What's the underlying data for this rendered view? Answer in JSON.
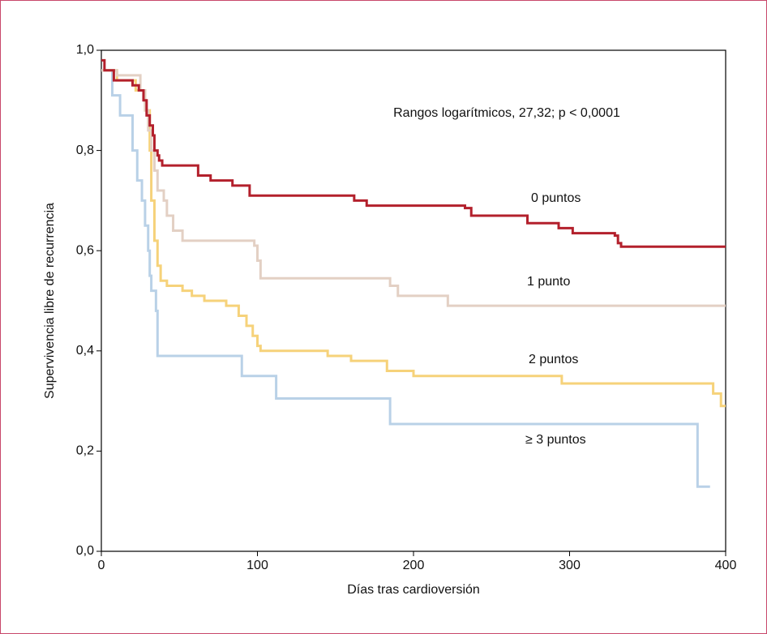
{
  "chart_data": {
    "type": "step",
    "xlabel": "Días tras cardioversión",
    "ylabel": "Supervivencia libre de recurrencia",
    "annotation": "Rangos logarítmicos, 27,32; p < 0,0001",
    "xlim": [
      0,
      400
    ],
    "xticks": [
      0,
      100,
      200,
      300,
      400
    ],
    "ylim": [
      0,
      1
    ],
    "yticks": [
      {
        "value": 0,
        "label": "0,0"
      },
      {
        "value": 0.2,
        "label": "0,2"
      },
      {
        "value": 0.4,
        "label": "0,4"
      },
      {
        "value": 0.6,
        "label": "0,6"
      },
      {
        "value": 0.8,
        "label": "0,8"
      },
      {
        "value": 1,
        "label": "1,0"
      }
    ],
    "series": [
      {
        "name": "0 puntos",
        "color": "#b3202c",
        "x": [
          0,
          2,
          8,
          20,
          24,
          27,
          29,
          31,
          33,
          34,
          36,
          37,
          39,
          62,
          70,
          84,
          95,
          162,
          170,
          233,
          237,
          273,
          293,
          302,
          329,
          331,
          333,
          400
        ],
        "values": [
          0.98,
          0.96,
          0.94,
          0.93,
          0.92,
          0.9,
          0.87,
          0.85,
          0.83,
          0.8,
          0.79,
          0.78,
          0.77,
          0.75,
          0.74,
          0.73,
          0.71,
          0.7,
          0.69,
          0.685,
          0.67,
          0.655,
          0.645,
          0.635,
          0.63,
          0.615,
          0.608,
          0.608
        ]
      },
      {
        "name": "1 punto",
        "color": "#e3d0c4",
        "x": [
          0,
          10,
          25,
          28,
          30,
          32,
          34,
          36,
          40,
          42,
          46,
          52,
          98,
          100,
          102,
          185,
          190,
          222,
          400
        ],
        "values": [
          0.96,
          0.95,
          0.92,
          0.88,
          0.84,
          0.8,
          0.76,
          0.72,
          0.7,
          0.67,
          0.64,
          0.62,
          0.61,
          0.58,
          0.545,
          0.53,
          0.51,
          0.49,
          0.49
        ]
      },
      {
        "name": "2 puntos",
        "color": "#f6d27a",
        "x": [
          0,
          10,
          22,
          28,
          31,
          32,
          34,
          36,
          38,
          42,
          52,
          58,
          66,
          80,
          88,
          93,
          97,
          100,
          102,
          145,
          160,
          183,
          200,
          295,
          392,
          397,
          400
        ],
        "values": [
          0.96,
          0.94,
          0.92,
          0.88,
          0.8,
          0.7,
          0.62,
          0.57,
          0.54,
          0.53,
          0.52,
          0.51,
          0.5,
          0.49,
          0.47,
          0.45,
          0.43,
          0.41,
          0.4,
          0.39,
          0.38,
          0.36,
          0.35,
          0.335,
          0.315,
          0.29,
          0.29
        ]
      },
      {
        "name": "≥ 3 puntos",
        "color": "#b9d1e7",
        "x": [
          0,
          7,
          12,
          20,
          23,
          26,
          28,
          30,
          31,
          32,
          35,
          36,
          90,
          112,
          185,
          382,
          390
        ],
        "values": [
          0.96,
          0.91,
          0.87,
          0.8,
          0.74,
          0.7,
          0.65,
          0.6,
          0.55,
          0.52,
          0.48,
          0.39,
          0.35,
          0.305,
          0.254,
          0.129,
          0.129
        ]
      }
    ]
  }
}
